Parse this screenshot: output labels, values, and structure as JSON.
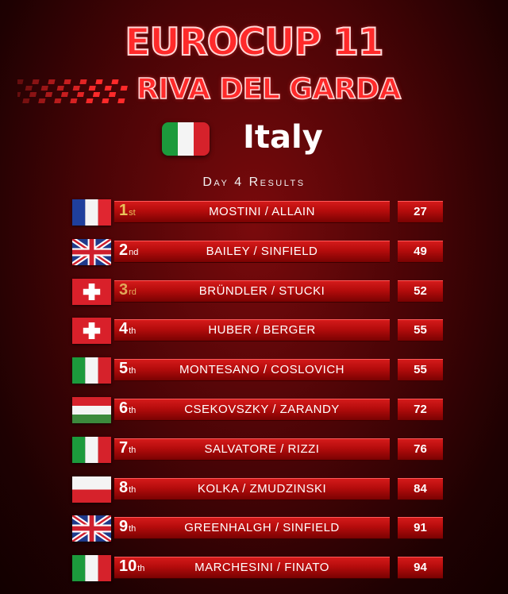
{
  "event": {
    "title": "EUROCUP 11",
    "venue": "RIVA DEL GARDA",
    "country": "Italy",
    "country_flag": "italy-flag",
    "subtitle": "Day 4 Results"
  },
  "colors": {
    "accent": "#ff2a2a",
    "bar": "#c01010",
    "background": "#4a0406"
  },
  "results": [
    {
      "pos": "1",
      "suffix": "st",
      "names": "MOSTINI / ALLAIN",
      "score": "27",
      "flag": "france-flag"
    },
    {
      "pos": "2",
      "suffix": "nd",
      "names": "BAILEY / SINFIELD",
      "score": "49",
      "flag": "uk-flag"
    },
    {
      "pos": "3",
      "suffix": "rd",
      "names": "BRÜNDLER / STUCKI",
      "score": "52",
      "flag": "switzerland-flag"
    },
    {
      "pos": "4",
      "suffix": "th",
      "names": "HUBER / BERGER",
      "score": "55",
      "flag": "switzerland-flag"
    },
    {
      "pos": "5",
      "suffix": "th",
      "names": "MONTESANO / COSLOVICH",
      "score": "55",
      "flag": "italy-flag"
    },
    {
      "pos": "6",
      "suffix": "th",
      "names": "CSEKOVSZKY / ZARANDY",
      "score": "72",
      "flag": "hungary-flag"
    },
    {
      "pos": "7",
      "suffix": "th",
      "names": "SALVATORE / RIZZI",
      "score": "76",
      "flag": "italy-flag"
    },
    {
      "pos": "8",
      "suffix": "th",
      "names": "KOLKA / ZMUDZINSKI",
      "score": "84",
      "flag": "poland-flag"
    },
    {
      "pos": "9",
      "suffix": "th",
      "names": "GREENHALGH / SINFIELD",
      "score": "91",
      "flag": "uk-flag"
    },
    {
      "pos": "10",
      "suffix": "th",
      "names": "MARCHESINI / FINATO",
      "score": "94",
      "flag": "italy-flag"
    }
  ]
}
